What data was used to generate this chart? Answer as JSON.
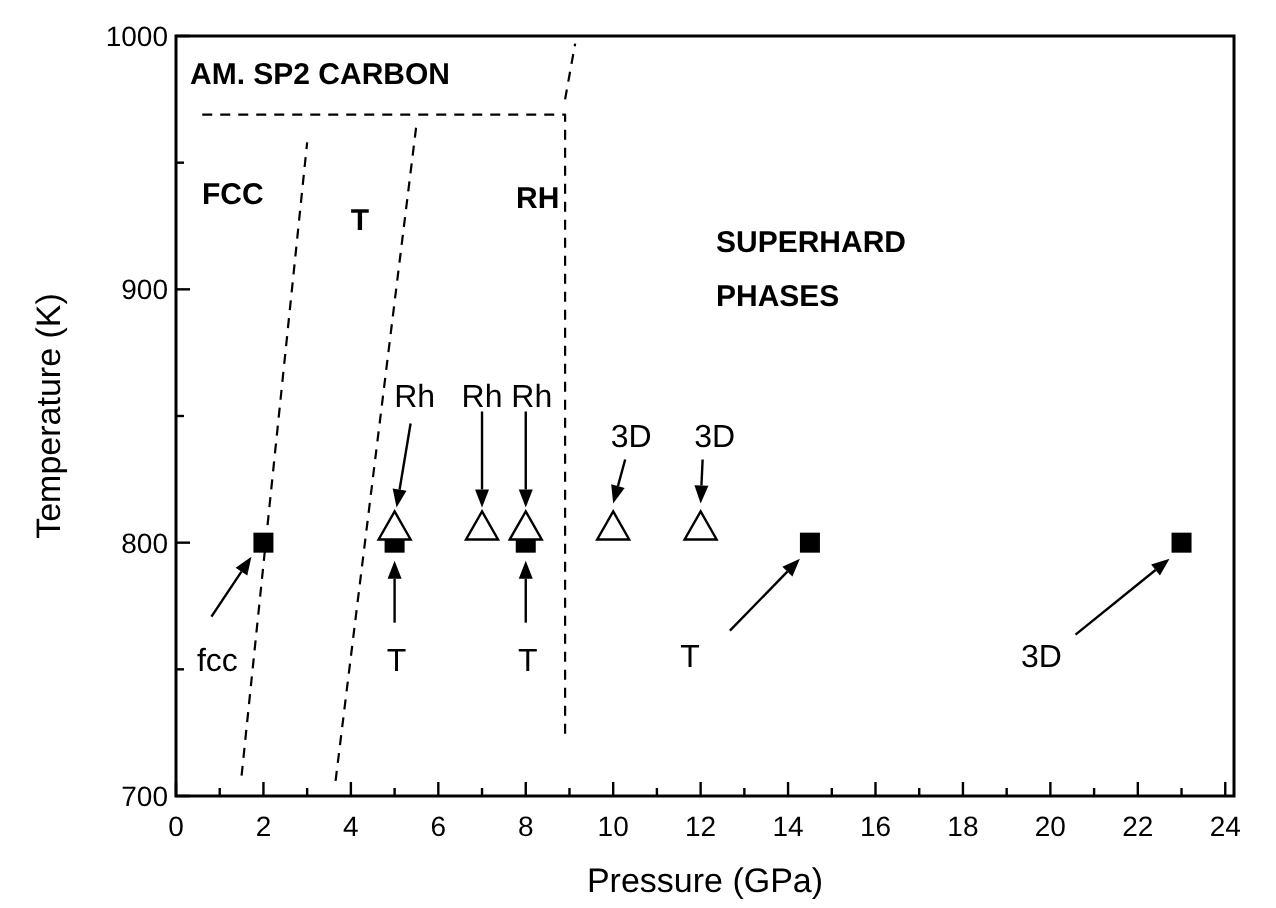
{
  "chart_data": {
    "type": "scatter",
    "xlabel": "Pressure (GPa)",
    "ylabel": "Temperature (K)",
    "xlim": [
      0,
      24.2
    ],
    "ylim": [
      700,
      1000
    ],
    "xticks": [
      0,
      {
        "value": 1,
        "label": null
      },
      2,
      {
        "value": 3,
        "label": null
      },
      4,
      {
        "value": 5,
        "label": null
      },
      6,
      {
        "value": 7,
        "label": null
      },
      8,
      {
        "value": 9,
        "label": null
      },
      10,
      {
        "value": 11,
        "label": null
      },
      12,
      {
        "value": 13,
        "label": null
      },
      14,
      {
        "value": 15,
        "label": null
      },
      16,
      {
        "value": 17,
        "label": null
      },
      18,
      {
        "value": 19,
        "label": null
      },
      20,
      {
        "value": 21,
        "label": null
      },
      22,
      {
        "value": 23,
        "label": null
      },
      24
    ],
    "yticks": [
      700,
      {
        "value": 750,
        "label": null
      },
      800,
      {
        "value": 850,
        "label": null
      },
      900,
      {
        "value": 950,
        "label": null
      },
      1000
    ],
    "grid": false,
    "series": [
      {
        "color": "#000000",
        "marker": "square",
        "x": [
          2,
          5,
          8,
          14.5,
          23
        ],
        "values": [
          800,
          800,
          800,
          800,
          800
        ]
      },
      {
        "color": "#000000",
        "marker": "triangle",
        "x": [
          5,
          7,
          8,
          10,
          12
        ],
        "values": [
          806,
          806,
          806,
          806,
          806
        ]
      },
      {
        "type": "line",
        "color": "#000000",
        "line_style": "dashed",
        "marker": "none",
        "x": [
          1.5,
          3.0
        ],
        "values": [
          708,
          958
        ]
      },
      {
        "type": "line",
        "color": "#000000",
        "line_style": "dashed",
        "marker": "none",
        "x": [
          3.65,
          5.5
        ],
        "values": [
          706,
          965
        ]
      },
      {
        "type": "line",
        "color": "#000000",
        "line_style": "dashed",
        "marker": "none",
        "x": [
          0.6,
          8.9,
          8.9
        ],
        "values": [
          969,
          969,
          723
        ]
      },
      {
        "type": "line",
        "color": "#000000",
        "line_style": "dashed",
        "marker": "none",
        "x": [
          8.9,
          9.13
        ],
        "values": [
          975,
          997
        ]
      }
    ],
    "annotations": [
      "AM. SP2 CARBON",
      "FCC",
      "T",
      "RH",
      "SUPERHARD PHASES",
      "fcc",
      "T",
      "T",
      "T",
      "3D",
      "Rh",
      "Rh",
      "Rh",
      "3D",
      "3D"
    ]
  }
}
